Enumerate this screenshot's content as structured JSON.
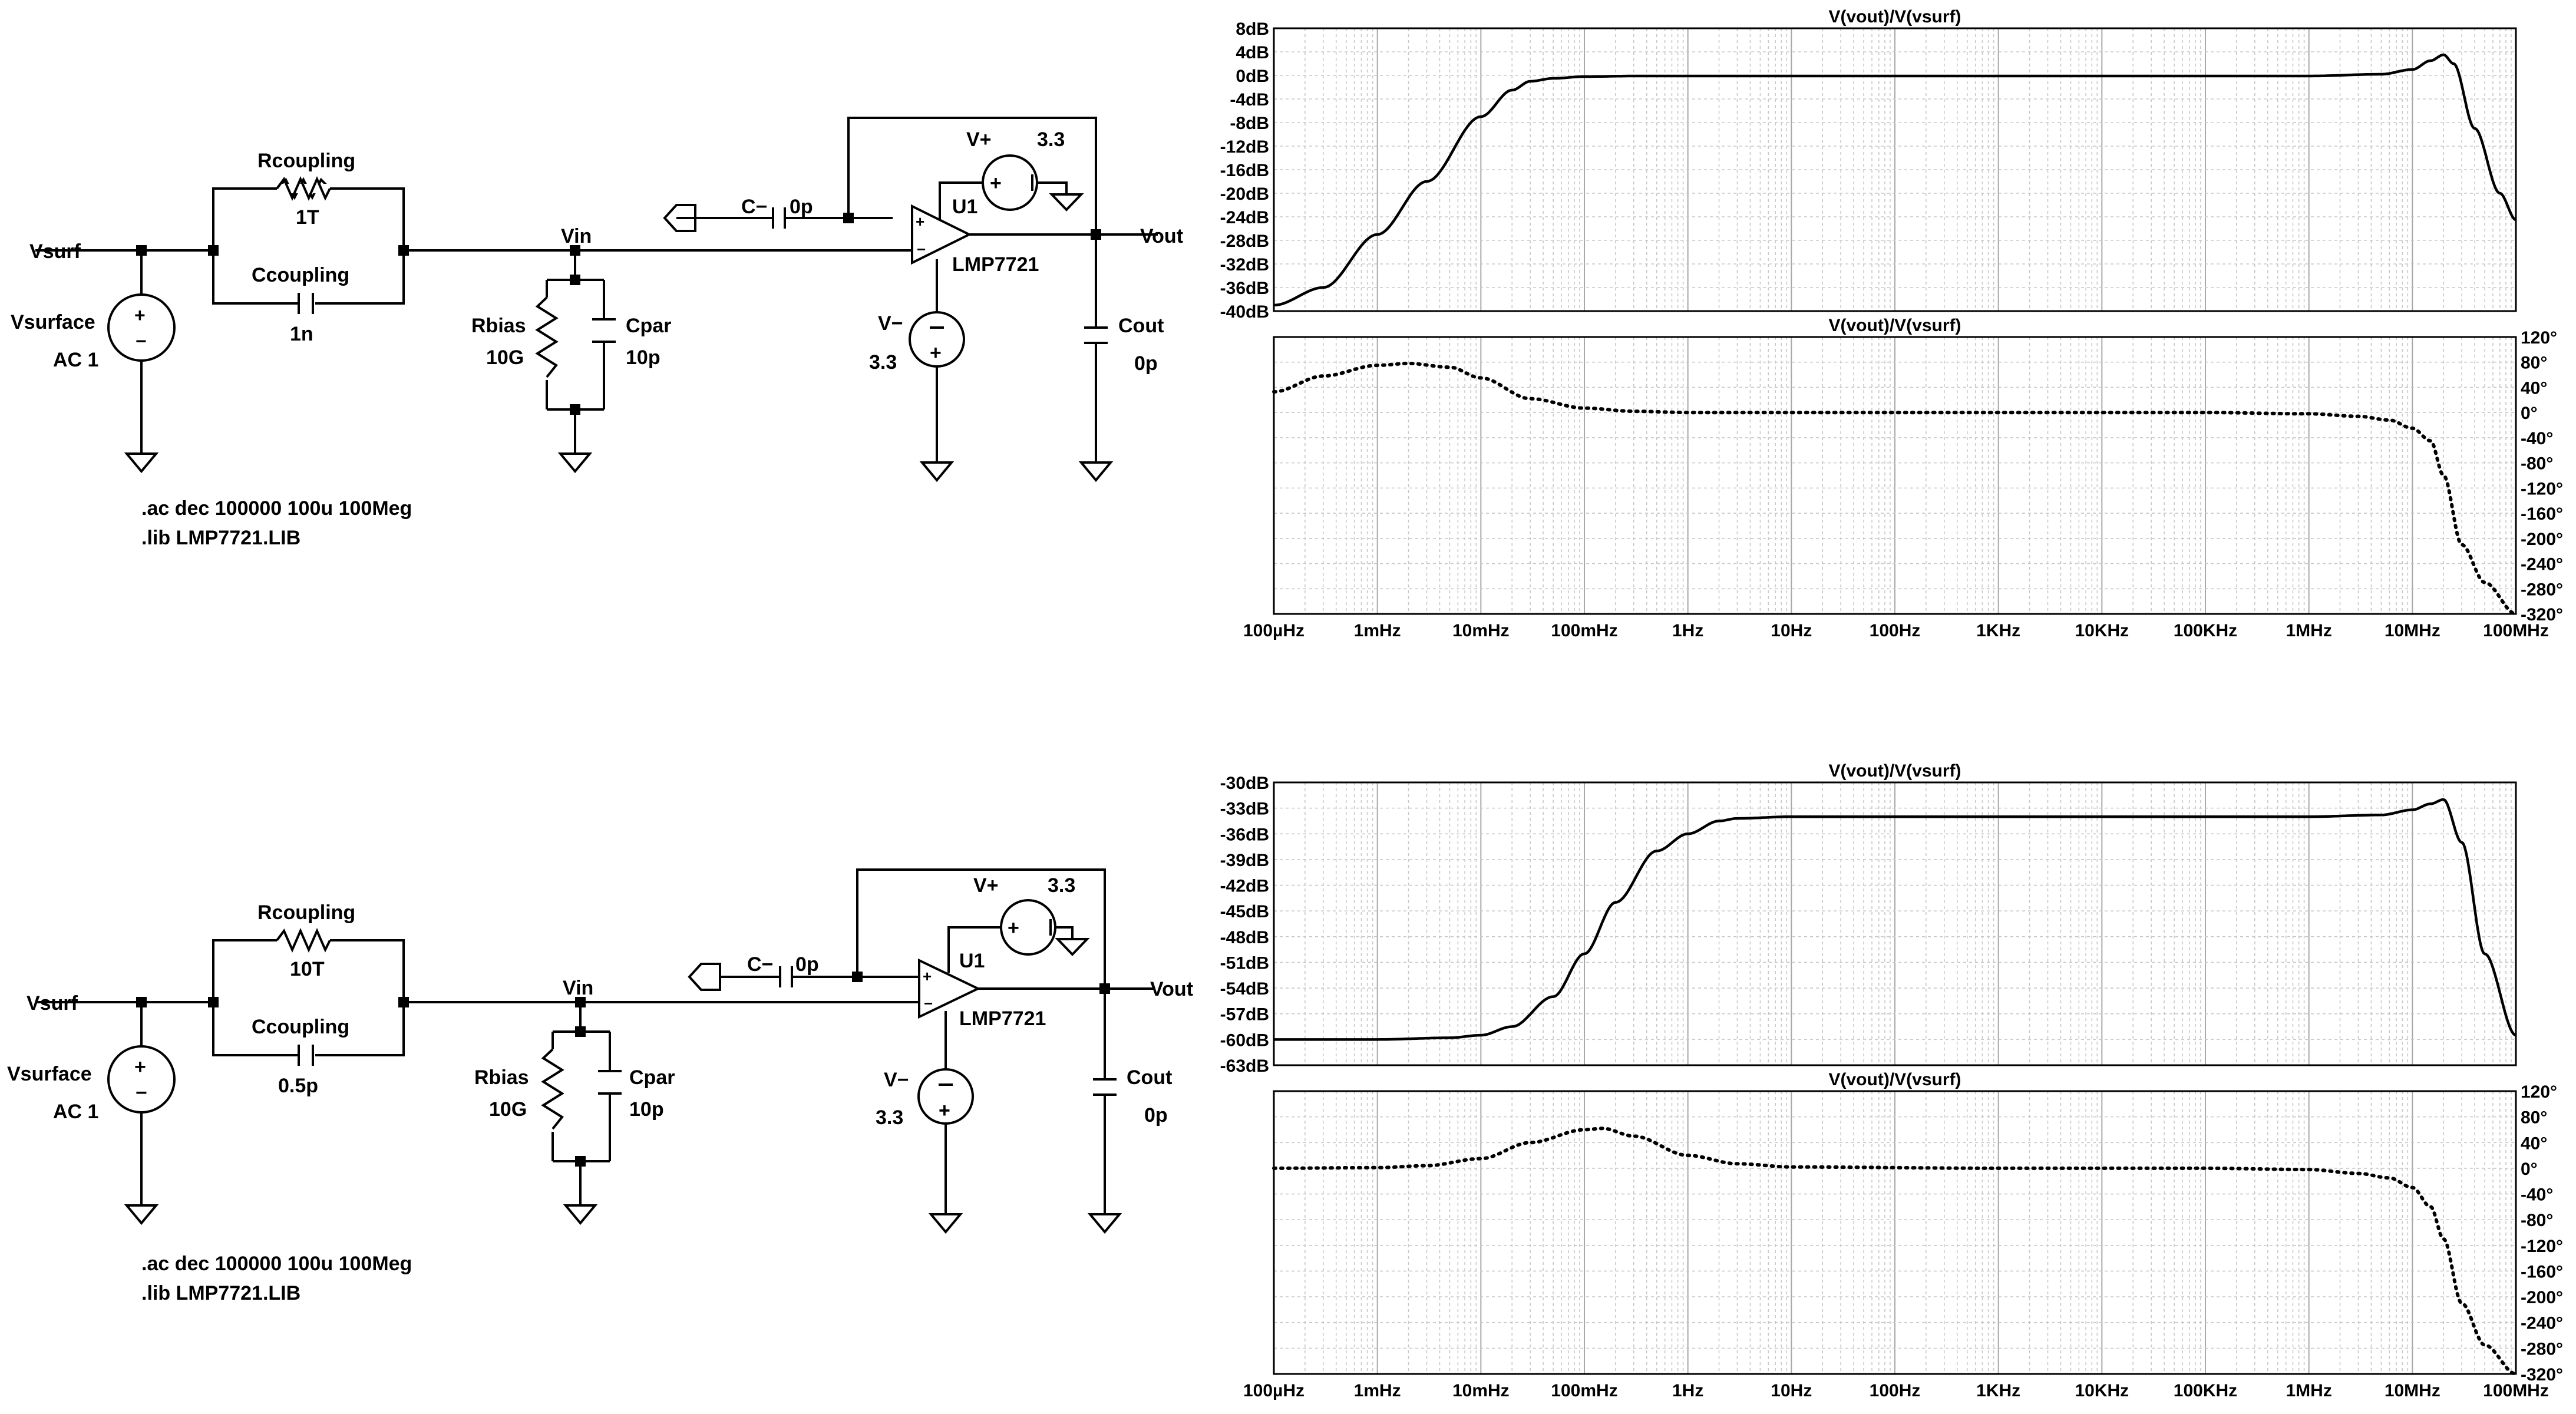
{
  "schematics": [
    {
      "labels": {
        "vsurf": "Vsurf",
        "vin": "Vin",
        "vout": "Vout",
        "rcoupling": "Rcoupling",
        "rcoupling_val": "1T",
        "ccoupling": "Ccoupling",
        "ccoupling_val": "1n",
        "c_minus": "C−",
        "c_minus_val": "0p",
        "vplus": "V+",
        "vplus_val": "3.3",
        "vminus": "V−",
        "vminus_val": "3.3",
        "u1": "U1",
        "opamp": "LMP7721",
        "vsurface": "Vsurface",
        "ac": "AC 1",
        "rbias": "Rbias",
        "rbias_val": "10G",
        "cpar": "Cpar",
        "cpar_val": "10p",
        "cout": "Cout",
        "cout_val": "0p",
        "directive1": ".ac dec 100000 100u 100Meg",
        "directive2": ".lib LMP7721.LIB"
      }
    },
    {
      "labels": {
        "vsurf": "Vsurf",
        "vin": "Vin",
        "vout": "Vout",
        "rcoupling": "Rcoupling",
        "rcoupling_val": "10T",
        "ccoupling": "Ccoupling",
        "ccoupling_val": "0.5p",
        "c_minus": "C−",
        "c_minus_val": "0p",
        "vplus": "V+",
        "vplus_val": "3.3",
        "vminus": "V−",
        "vminus_val": "3.3",
        "u1": "U1",
        "opamp": "LMP7721",
        "vsurface": "Vsurface",
        "ac": "AC 1",
        "rbias": "Rbias",
        "rbias_val": "10G",
        "cpar": "Cpar",
        "cpar_val": "10p",
        "cout": "Cout",
        "cout_val": "0p",
        "directive1": ".ac dec 100000 100u 100Meg",
        "directive2": ".lib LMP7721.LIB"
      }
    }
  ],
  "plot_labels": {
    "x_ticks": [
      "100µHz",
      "1mHz",
      "10mHz",
      "100mHz",
      "1Hz",
      "10Hz",
      "100Hz",
      "1KHz",
      "10KHz",
      "100KHz",
      "1MHz",
      "10MHz",
      "100MHz"
    ]
  },
  "chart_data": [
    {
      "type": "line",
      "title": "V(vout)/V(vsurf)",
      "x_scale": "log",
      "xlim": [
        0.0001,
        100000000
      ],
      "ylim": [
        -40,
        8
      ],
      "y_ticks": [
        "8dB",
        "4dB",
        "0dB",
        "-4dB",
        "-8dB",
        "-12dB",
        "-16dB",
        "-20dB",
        "-24dB",
        "-28dB",
        "-32dB",
        "-36dB",
        "-40dB"
      ],
      "ylabel_unit": "dB",
      "series": [
        {
          "style": "solid",
          "x": [
            0.0001,
            0.0003,
            0.001,
            0.003,
            0.01,
            0.02,
            0.03,
            0.05,
            0.1,
            0.3,
            1,
            100000,
            1000000,
            5000000,
            10000000,
            15000000,
            20000000,
            25000000,
            40000000,
            70000000,
            100000000
          ],
          "y": [
            -39,
            -36,
            -27,
            -18,
            -7,
            -2.5,
            -1,
            -0.5,
            -0.2,
            -0.1,
            -0.1,
            -0.1,
            -0.1,
            0.2,
            1,
            2.5,
            3.5,
            2,
            -9,
            -20,
            -24.5
          ]
        }
      ]
    },
    {
      "type": "line",
      "title": "V(vout)/V(vsurf)",
      "x_scale": "log",
      "xlim": [
        0.0001,
        100000000
      ],
      "ylim": [
        -320,
        120
      ],
      "y_ticks": [
        "120°",
        "80°",
        "40°",
        "0°",
        "-40°",
        "-80°",
        "-120°",
        "-160°",
        "-200°",
        "-240°",
        "-280°",
        "-320°"
      ],
      "ylabel_unit": "°",
      "series": [
        {
          "style": "dotted",
          "x": [
            0.0001,
            0.0003,
            0.001,
            0.002,
            0.005,
            0.01,
            0.03,
            0.1,
            0.3,
            1,
            1000,
            100000,
            1000000,
            3000000,
            6000000,
            10000000,
            15000000,
            20000000,
            30000000,
            50000000,
            100000000
          ],
          "y": [
            33,
            58,
            75,
            78,
            72,
            55,
            22,
            7,
            2,
            0,
            0,
            0,
            -2,
            -6,
            -12,
            -25,
            -45,
            -100,
            -210,
            -270,
            -320
          ]
        }
      ]
    },
    {
      "type": "line",
      "title": "V(vout)/V(vsurf)",
      "x_scale": "log",
      "xlim": [
        0.0001,
        100000000
      ],
      "ylim": [
        -63,
        -30
      ],
      "y_ticks": [
        "-30dB",
        "-33dB",
        "-36dB",
        "-39dB",
        "-42dB",
        "-45dB",
        "-48dB",
        "-51dB",
        "-54dB",
        "-57dB",
        "-60dB",
        "-63dB"
      ],
      "ylabel_unit": "dB",
      "series": [
        {
          "style": "solid",
          "x": [
            0.0001,
            0.001,
            0.005,
            0.01,
            0.02,
            0.05,
            0.1,
            0.2,
            0.5,
            1,
            2,
            3,
            10,
            100000,
            1000000,
            5000000,
            10000000,
            15000000,
            20000000,
            30000000,
            50000000,
            100000000
          ],
          "y": [
            -60,
            -60,
            -59.8,
            -59.5,
            -58.5,
            -55,
            -50,
            -44,
            -38,
            -36,
            -34.5,
            -34.2,
            -34,
            -34,
            -34,
            -33.8,
            -33.2,
            -32.5,
            -32,
            -37,
            -50,
            -59.5
          ]
        }
      ]
    },
    {
      "type": "line",
      "title": "V(vout)/V(vsurf)",
      "x_scale": "log",
      "xlim": [
        0.0001,
        100000000
      ],
      "ylim": [
        -320,
        120
      ],
      "y_ticks": [
        "120°",
        "80°",
        "40°",
        "0°",
        "-40°",
        "-80°",
        "-120°",
        "-160°",
        "-200°",
        "-240°",
        "-280°",
        "-320°"
      ],
      "ylabel_unit": "°",
      "series": [
        {
          "style": "dotted",
          "x": [
            0.0001,
            0.001,
            0.003,
            0.01,
            0.03,
            0.1,
            0.15,
            0.3,
            1,
            3,
            10,
            1000,
            100000,
            1000000,
            3000000,
            6000000,
            10000000,
            15000000,
            20000000,
            30000000,
            50000000,
            100000000
          ],
          "y": [
            0,
            1,
            4,
            15,
            40,
            60,
            62,
            50,
            20,
            7,
            2,
            0,
            0,
            -2,
            -8,
            -15,
            -30,
            -60,
            -110,
            -210,
            -275,
            -320
          ]
        }
      ]
    }
  ]
}
